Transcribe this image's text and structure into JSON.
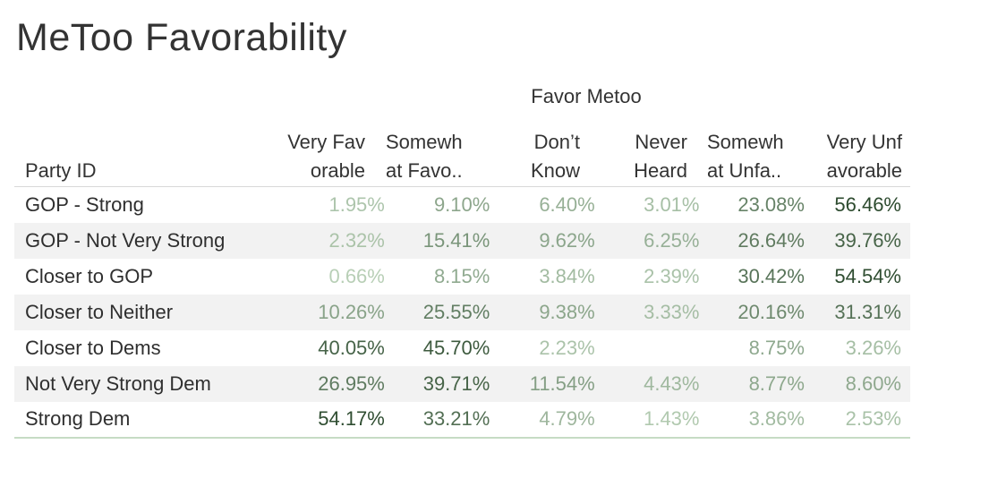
{
  "title": "MeToo Favorability",
  "column_group": "Favor Metoo",
  "row_header_label": "Party ID",
  "columns": [
    {
      "line1": "Very Fav",
      "line2": "orable"
    },
    {
      "line1": "Somewh",
      "line2": "at Favo.."
    },
    {
      "line1": "Don’t",
      "line2": "Know"
    },
    {
      "line1": "Never",
      "line2": "Heard"
    },
    {
      "line1": "Somewh",
      "line2": "at Unfa.."
    },
    {
      "line1": "Very Unf",
      "line2": "avorable"
    }
  ],
  "colors": {
    "low": "#c5dcc3",
    "high": "#2c4a2e"
  },
  "chart_data": {
    "type": "table",
    "title": "MeToo Favorability",
    "column_group": "Favor Metoo",
    "row_label": "Party ID",
    "columns": [
      "Very Favorable",
      "Somewhat Favorable",
      "Don’t Know",
      "Never Heard",
      "Somewhat Unfavorable",
      "Very Unfavorable"
    ],
    "rows": [
      {
        "label": "GOP - Strong",
        "values": [
          1.95,
          9.1,
          6.4,
          3.01,
          23.08,
          56.46
        ],
        "display": [
          "1.95%",
          "9.10%",
          "6.40%",
          "3.01%",
          "23.08%",
          "56.46%"
        ]
      },
      {
        "label": "GOP - Not Very Strong",
        "values": [
          2.32,
          15.41,
          9.62,
          6.25,
          26.64,
          39.76
        ],
        "display": [
          "2.32%",
          "15.41%",
          "9.62%",
          "6.25%",
          "26.64%",
          "39.76%"
        ]
      },
      {
        "label": "Closer to GOP",
        "values": [
          0.66,
          8.15,
          3.84,
          2.39,
          30.42,
          54.54
        ],
        "display": [
          "0.66%",
          "8.15%",
          "3.84%",
          "2.39%",
          "30.42%",
          "54.54%"
        ]
      },
      {
        "label": "Closer to Neither",
        "values": [
          10.26,
          25.55,
          9.38,
          3.33,
          20.16,
          31.31
        ],
        "display": [
          "10.26%",
          "25.55%",
          "9.38%",
          "3.33%",
          "20.16%",
          "31.31%"
        ]
      },
      {
        "label": "Closer to Dems",
        "values": [
          40.05,
          45.7,
          2.23,
          null,
          8.75,
          3.26
        ],
        "display": [
          "40.05%",
          "45.70%",
          "2.23%",
          "",
          "8.75%",
          "3.26%"
        ]
      },
      {
        "label": "Not Very Strong Dem",
        "values": [
          26.95,
          39.71,
          11.54,
          4.43,
          8.77,
          8.6
        ],
        "display": [
          "26.95%",
          "39.71%",
          "11.54%",
          "4.43%",
          "8.77%",
          "8.60%"
        ]
      },
      {
        "label": "Strong Dem",
        "values": [
          54.17,
          33.21,
          4.79,
          1.43,
          3.86,
          2.53
        ],
        "display": [
          "54.17%",
          "33.21%",
          "4.79%",
          "1.43%",
          "3.86%",
          "2.53%"
        ]
      }
    ]
  }
}
